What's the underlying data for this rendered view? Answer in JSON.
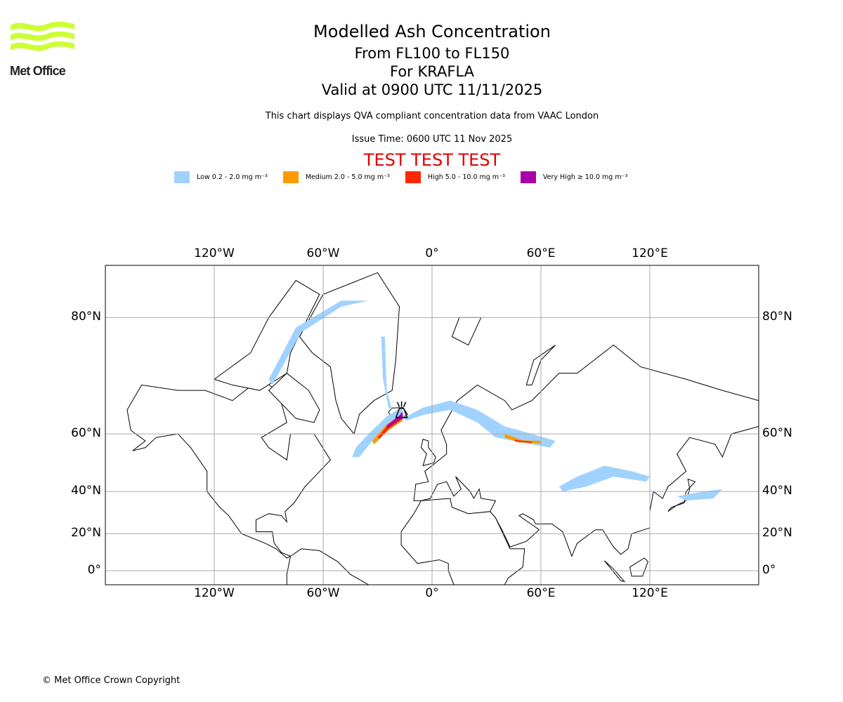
{
  "header": {
    "logo_text": "Met Office",
    "title": "Modelled Ash Concentration",
    "level_range": "From FL100 to FL150",
    "volcano": "For KRAFLA",
    "valid_time": "Valid at 0900 UTC 11/11/2025",
    "description": "This chart displays QVA compliant concentration data from VAAC London",
    "issue_time": "Issue Time: 0600 UTC 11 Nov 2025",
    "test_banner": "TEST TEST TEST"
  },
  "legend": [
    {
      "label": "Low 0.2 - 2.0 mg m⁻³",
      "color": "#a0d2ff"
    },
    {
      "label": "Medium 2.0 - 5.0 mg m⁻³",
      "color": "#ff9900"
    },
    {
      "label": "High 5.0 - 10.0 mg m⁻³",
      "color": "#ff2800"
    },
    {
      "label": "Very High ≥ 10.0 mg m⁻³",
      "color": "#aa00aa"
    }
  ],
  "map": {
    "projection": "Mercator",
    "lon_range": [
      -180,
      180
    ],
    "lat_range": [
      -7.7,
      87
    ],
    "lon_ticks": [
      {
        "value": -120,
        "label": "120°W"
      },
      {
        "value": -60,
        "label": "60°W"
      },
      {
        "value": 0,
        "label": "0°"
      },
      {
        "value": 60,
        "label": "60°E"
      },
      {
        "value": 120,
        "label": "120°E"
      }
    ],
    "lat_ticks": [
      {
        "value": 80,
        "label": "80°N"
      },
      {
        "value": 60,
        "label": "60°N"
      },
      {
        "value": 40,
        "label": "40°N"
      },
      {
        "value": 20,
        "label": "20°N"
      },
      {
        "value": 0,
        "label": "0°"
      }
    ],
    "volcano_location": {
      "lon": -16.8,
      "lat": 65.7
    }
  },
  "footer": {
    "copyright": "© Met Office Crown Copyright"
  }
}
